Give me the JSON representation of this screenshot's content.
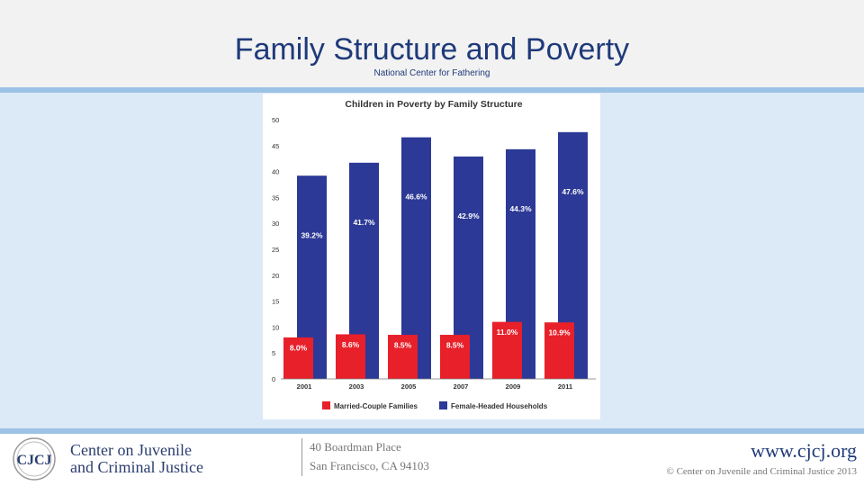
{
  "slide": {
    "title": "Family Structure and Poverty",
    "subtitle": "National Center for Fathering"
  },
  "chart_data": {
    "type": "bar",
    "title": "Children in Poverty by Family Structure",
    "categories": [
      "2001",
      "2003",
      "2005",
      "2007",
      "2009",
      "2011"
    ],
    "series": [
      {
        "name": "Married-Couple Families",
        "color": "#e8202a",
        "values": [
          8.0,
          8.6,
          8.5,
          8.5,
          11.0,
          10.9
        ],
        "labels": [
          "8.0%",
          "8.6%",
          "8.5%",
          "8.5%",
          "11.0%",
          "10.9%"
        ]
      },
      {
        "name": "Female-Headed Households",
        "color": "#2c3996",
        "values": [
          39.2,
          41.7,
          46.6,
          42.9,
          44.3,
          47.6
        ],
        "labels": [
          "39.2%",
          "41.7%",
          "46.6%",
          "42.9%",
          "44.3%",
          "47.6%"
        ]
      }
    ],
    "ylim": [
      0,
      50
    ],
    "yticks": [
      "0",
      "5",
      "10",
      "15",
      "20",
      "25",
      "30",
      "35",
      "40",
      "45",
      "50"
    ],
    "legend": "bottom",
    "grid": false
  },
  "footer": {
    "logo_mark": "CJCJ",
    "logo_line1": "Center on Juvenile",
    "logo_line2": "and Criminal Justice",
    "address_line1": "40 Boardman Place",
    "address_line2": "San Francisco, CA 94103",
    "website": "www.cjcj.org",
    "copyright": "© Center on Juvenile and Criminal Justice 2013"
  },
  "colors": {
    "title": "#1f3a7a",
    "content_bg": "#dce9f7",
    "rule": "#9cc3e6"
  }
}
